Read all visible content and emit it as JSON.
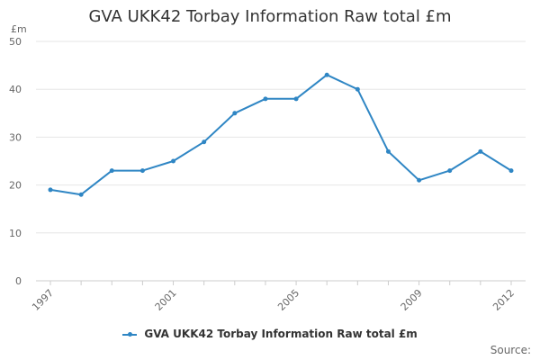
{
  "colors": {
    "series": "#2f86c4",
    "grid": "#e6e6e6",
    "axis": "#cccccc"
  },
  "source_label": "Source:",
  "chart_data": {
    "type": "line",
    "title": "GVA UKK42 Torbay Information Raw total £m",
    "ylabel": "£m",
    "xlabel": "",
    "ylim": [
      0,
      50
    ],
    "yticks": [
      0,
      10,
      20,
      30,
      40,
      50
    ],
    "xlim": [
      1997,
      2012
    ],
    "xticks": [
      1997,
      2001,
      2005,
      2009,
      2012
    ],
    "grid": true,
    "legend_position": "bottom",
    "series": [
      {
        "name": "GVA UKK42 Torbay Information Raw total £m",
        "x": [
          1997,
          1998,
          1999,
          2000,
          2001,
          2002,
          2003,
          2004,
          2005,
          2006,
          2007,
          2008,
          2009,
          2010,
          2011,
          2012
        ],
        "values": [
          19,
          18,
          23,
          23,
          25,
          29,
          35,
          38,
          38,
          43,
          40,
          27,
          21,
          23,
          27,
          23
        ]
      }
    ]
  }
}
